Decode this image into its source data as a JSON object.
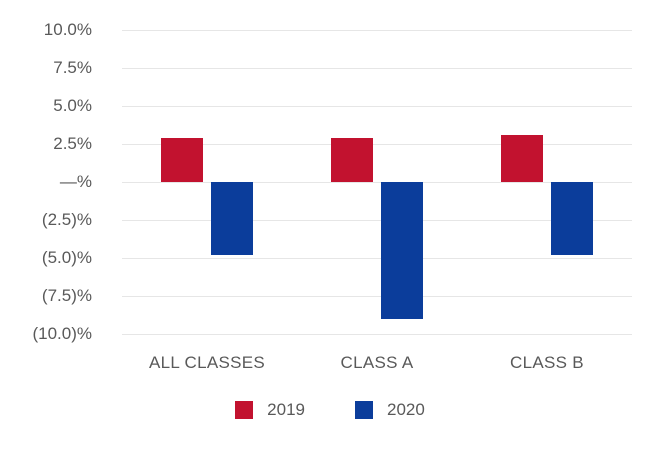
{
  "chart_data": {
    "type": "bar",
    "categories": [
      "ALL CLASSES",
      "CLASS A",
      "CLASS B"
    ],
    "series": [
      {
        "name": "2019",
        "color": "#c2122f",
        "values": [
          2.9,
          2.9,
          3.1
        ]
      },
      {
        "name": "2020",
        "color": "#0b3d9b",
        "values": [
          -4.8,
          -9.0,
          -4.8
        ]
      }
    ],
    "title": "",
    "xlabel": "",
    "ylabel": "",
    "ylim": [
      -10,
      10
    ],
    "ytick_step": 2.5,
    "ytick_labels": [
      "10.0%",
      "7.5%",
      "5.0%",
      "2.5%",
      "—%",
      "(2.5)%",
      "(5.0)%",
      "(7.5)%",
      "(10.0)%"
    ],
    "grid": true,
    "legend_position": "bottom",
    "colors": {
      "axis_text": "#595959",
      "gridline": "#e6e6e6",
      "background": "#ffffff",
      "series_2019": "#c2122f",
      "series_2020": "#0b3d9b"
    }
  }
}
